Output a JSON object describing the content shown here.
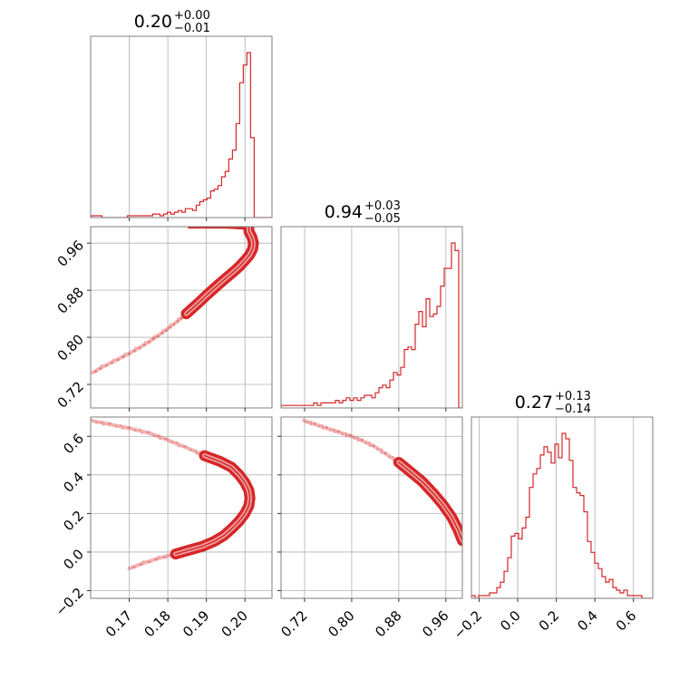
{
  "chart_data": {
    "type": "corner",
    "grid": true,
    "color": "#d62728",
    "parameters": [
      {
        "title": {
          "median": "0.20",
          "plus": "+0.00",
          "minus": "−0.01"
        },
        "range": [
          0.16,
          0.207
        ],
        "ticks": [
          "0.17",
          "0.18",
          "0.19",
          "0.20"
        ],
        "tick_values": [
          0.17,
          0.18,
          0.19,
          0.2
        ],
        "hist": {
          "bin_edges_start": 0.1601,
          "bin_width": 0.00094,
          "counts": [
            1,
            1,
            1,
            0,
            0,
            0,
            0,
            0,
            0,
            0,
            1,
            1,
            1,
            1,
            1,
            1,
            1,
            2,
            2,
            1,
            2,
            3,
            2,
            3,
            4,
            3,
            5,
            5,
            4,
            7,
            9,
            10,
            11,
            15,
            16,
            18,
            23,
            26,
            33,
            38,
            53,
            76,
            86,
            93,
            45,
            0,
            0,
            0,
            0,
            0
          ]
        }
      },
      {
        "title": {
          "median": "0.94",
          "plus": "+0.03",
          "minus": "−0.05"
        },
        "range": [
          0.68,
          0.988
        ],
        "ticks": [
          "0.72",
          "0.80",
          "0.88",
          "0.96"
        ],
        "tick_values": [
          0.72,
          0.8,
          0.88,
          0.96
        ],
        "hist": {
          "bin_edges_start": 0.68,
          "bin_width": 0.00616,
          "counts": [
            1,
            1,
            1,
            1,
            1,
            1,
            1,
            1,
            1,
            2,
            1,
            2,
            2,
            2,
            2,
            3,
            2,
            3,
            4,
            3,
            4,
            3,
            4,
            5,
            5,
            4,
            6,
            8,
            9,
            8,
            11,
            14,
            13,
            16,
            23,
            24,
            23,
            33,
            38,
            32,
            43,
            36,
            37,
            40,
            48,
            55,
            55,
            65,
            62,
            0
          ]
        }
      },
      {
        "title": {
          "median": "0.27",
          "plus": "+0.13",
          "minus": "−0.14"
        },
        "range": [
          -0.24,
          0.7
        ],
        "ticks": [
          "−0.2",
          "0.0",
          "0.2",
          "0.4",
          "0.6"
        ],
        "tick_values": [
          -0.2,
          0.0,
          0.2,
          0.4,
          0.6
        ],
        "hist": {
          "bin_edges_start": -0.24,
          "bin_width": 0.0188,
          "counts": [
            1,
            0,
            1,
            1,
            1,
            2,
            2,
            4,
            6,
            10,
            15,
            23,
            24,
            22,
            26,
            30,
            41,
            46,
            48,
            53,
            56,
            54,
            50,
            57,
            52,
            61,
            59,
            51,
            41,
            39,
            38,
            32,
            21,
            17,
            13,
            11,
            8,
            6,
            7,
            4,
            3,
            2,
            3,
            1,
            1,
            1,
            1,
            0,
            0,
            0
          ]
        }
      }
    ],
    "pairs": [
      {
        "x": 0,
        "y": 1,
        "ridge": [
          [
            0.201,
            0.988
          ],
          [
            0.201,
            0.98
          ],
          [
            0.2018,
            0.97
          ],
          [
            0.2022,
            0.96
          ],
          [
            0.202,
            0.95
          ],
          [
            0.2012,
            0.94
          ],
          [
            0.1999,
            0.93
          ],
          [
            0.1985,
            0.92
          ],
          [
            0.1968,
            0.91
          ],
          [
            0.195,
            0.9
          ],
          [
            0.1932,
            0.89
          ],
          [
            0.1915,
            0.88
          ],
          [
            0.1898,
            0.87
          ],
          [
            0.1882,
            0.86
          ],
          [
            0.1865,
            0.85
          ],
          [
            0.1848,
            0.84
          ],
          [
            0.183,
            0.83
          ],
          [
            0.181,
            0.82
          ],
          [
            0.179,
            0.81
          ],
          [
            0.1768,
            0.8
          ],
          [
            0.1745,
            0.79
          ],
          [
            0.172,
            0.78
          ],
          [
            0.1692,
            0.77
          ],
          [
            0.1662,
            0.76
          ],
          [
            0.1632,
            0.75
          ],
          [
            0.1605,
            0.74
          ]
        ],
        "core_range": [
          0.84,
          0.988
        ],
        "cap": [
          [
            0.1855,
            0.987
          ],
          [
            0.195,
            0.987
          ],
          [
            0.2,
            0.985
          ]
        ]
      },
      {
        "x": 0,
        "y": 2,
        "ridge": [
          [
            0.1605,
            0.68
          ],
          [
            0.1655,
            0.66
          ],
          [
            0.1705,
            0.64
          ],
          [
            0.1755,
            0.615
          ],
          [
            0.18,
            0.58
          ],
          [
            0.185,
            0.54
          ],
          [
            0.1895,
            0.5
          ],
          [
            0.1935,
            0.47
          ],
          [
            0.1965,
            0.44
          ],
          [
            0.1985,
            0.4
          ],
          [
            0.2,
            0.36
          ],
          [
            0.201,
            0.32
          ],
          [
            0.2013,
            0.28
          ],
          [
            0.201,
            0.24
          ],
          [
            0.2,
            0.2
          ],
          [
            0.1985,
            0.16
          ],
          [
            0.1965,
            0.12
          ],
          [
            0.1945,
            0.085
          ],
          [
            0.192,
            0.055
          ],
          [
            0.189,
            0.03
          ],
          [
            0.1855,
            0.01
          ],
          [
            0.182,
            -0.01
          ],
          [
            0.178,
            -0.03
          ],
          [
            0.174,
            -0.055
          ],
          [
            0.17,
            -0.085
          ]
        ],
        "core_range": [
          -0.02,
          0.5
        ]
      },
      {
        "x": 1,
        "y": 2,
        "ridge": [
          [
            0.72,
            0.68
          ],
          [
            0.74,
            0.66
          ],
          [
            0.76,
            0.64
          ],
          [
            0.78,
            0.62
          ],
          [
            0.8,
            0.6
          ],
          [
            0.82,
            0.575
          ],
          [
            0.84,
            0.545
          ],
          [
            0.86,
            0.505
          ],
          [
            0.88,
            0.465
          ],
          [
            0.9,
            0.415
          ],
          [
            0.92,
            0.365
          ],
          [
            0.94,
            0.3
          ],
          [
            0.955,
            0.245
          ],
          [
            0.97,
            0.18
          ],
          [
            0.98,
            0.12
          ],
          [
            0.988,
            0.06
          ]
        ],
        "core_range": [
          -1.0,
          0.47
        ]
      }
    ]
  }
}
